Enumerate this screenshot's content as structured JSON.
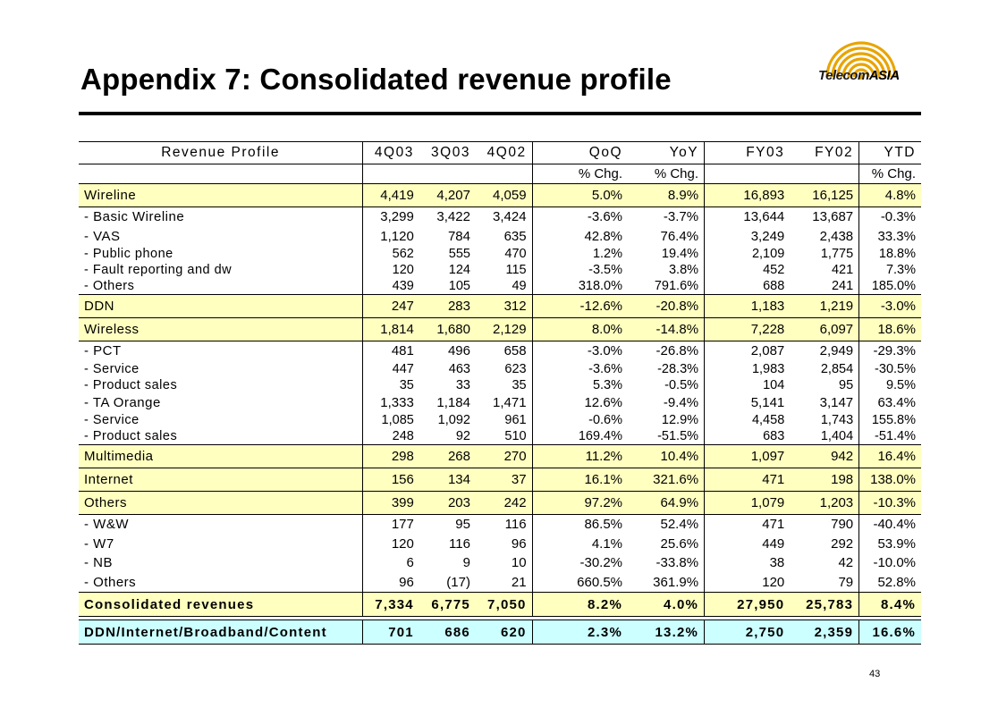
{
  "title": "Appendix 7: Consolidated revenue profile",
  "logo": {
    "text_main": "Telecom",
    "text_accent": "ASIA",
    "color": "#e8a400"
  },
  "page_number": "43",
  "table": {
    "headers": [
      "Revenue Profile",
      "4Q03",
      "3Q03",
      "4Q02",
      "QoQ",
      "YoY",
      "FY03",
      "FY02",
      "YTD"
    ],
    "subheaders": {
      "qoq": "% Chg.",
      "yoy": "% Chg.",
      "ytd": "% Chg."
    },
    "rows": [
      {
        "label": "Wireline",
        "v": [
          "4,419",
          "4,207",
          "4,059",
          "5.0%",
          "8.9%",
          "16,893",
          "16,125",
          "4.8%"
        ]
      },
      {
        "label": "- Basic Wireline",
        "v": [
          "3,299",
          "3,422",
          "3,424",
          "-3.6%",
          "-3.7%",
          "13,644",
          "13,687",
          "-0.3%"
        ]
      },
      {
        "label": "- VAS",
        "v": [
          "1,120",
          "784",
          "635",
          "42.8%",
          "76.4%",
          "3,249",
          "2,438",
          "33.3%"
        ]
      },
      {
        "label": "- Public phone",
        "v": [
          "562",
          "555",
          "470",
          "1.2%",
          "19.4%",
          "2,109",
          "1,775",
          "18.8%"
        ]
      },
      {
        "label": "- Fault reporting and dw",
        "v": [
          "120",
          "124",
          "115",
          "-3.5%",
          "3.8%",
          "452",
          "421",
          "7.3%"
        ]
      },
      {
        "label": "- Others",
        "v": [
          "439",
          "105",
          "49",
          "318.0%",
          "791.6%",
          "688",
          "241",
          "185.0%"
        ]
      },
      {
        "label": "DDN",
        "v": [
          "247",
          "283",
          "312",
          "-12.6%",
          "-20.8%",
          "1,183",
          "1,219",
          "-3.0%"
        ]
      },
      {
        "label": "Wireless",
        "v": [
          "1,814",
          "1,680",
          "2,129",
          "8.0%",
          "-14.8%",
          "7,228",
          "6,097",
          "18.6%"
        ]
      },
      {
        "label": "- PCT",
        "v": [
          "481",
          "496",
          "658",
          "-3.0%",
          "-26.8%",
          "2,087",
          "2,949",
          "-29.3%"
        ]
      },
      {
        "label": "- Service",
        "v": [
          "447",
          "463",
          "623",
          "-3.6%",
          "-28.3%",
          "1,983",
          "2,854",
          "-30.5%"
        ]
      },
      {
        "label": "- Product sales",
        "v": [
          "35",
          "33",
          "35",
          "5.3%",
          "-0.5%",
          "104",
          "95",
          "9.5%"
        ]
      },
      {
        "label": "- TA Orange",
        "v": [
          "1,333",
          "1,184",
          "1,471",
          "12.6%",
          "-9.4%",
          "5,141",
          "3,147",
          "63.4%"
        ]
      },
      {
        "label": "- Service",
        "v": [
          "1,085",
          "1,092",
          "961",
          "-0.6%",
          "12.9%",
          "4,458",
          "1,743",
          "155.8%"
        ]
      },
      {
        "label": "- Product sales",
        "v": [
          "248",
          "92",
          "510",
          "169.4%",
          "-51.5%",
          "683",
          "1,404",
          "-51.4%"
        ]
      },
      {
        "label": "Multimedia",
        "v": [
          "298",
          "268",
          "270",
          "11.2%",
          "10.4%",
          "1,097",
          "942",
          "16.4%"
        ]
      },
      {
        "label": "Internet",
        "v": [
          "156",
          "134",
          "37",
          "16.1%",
          "321.6%",
          "471",
          "198",
          "138.0%"
        ]
      },
      {
        "label": "Others",
        "v": [
          "399",
          "203",
          "242",
          "97.2%",
          "64.9%",
          "1,079",
          "1,203",
          "-10.3%"
        ]
      },
      {
        "label": "- W&W",
        "v": [
          "177",
          "95",
          "116",
          "86.5%",
          "52.4%",
          "471",
          "790",
          "-40.4%"
        ]
      },
      {
        "label": "- W7",
        "v": [
          "120",
          "116",
          "96",
          "4.1%",
          "25.6%",
          "449",
          "292",
          "53.9%"
        ]
      },
      {
        "label": "- NB",
        "v": [
          "6",
          "9",
          "10",
          "-30.2%",
          "-33.8%",
          "38",
          "42",
          "-10.0%"
        ]
      },
      {
        "label": "- Others",
        "v": [
          "96",
          "(17)",
          "21",
          "660.5%",
          "361.9%",
          "120",
          "79",
          "52.8%"
        ]
      },
      {
        "label": "Consolidated revenues",
        "v": [
          "7,334",
          "6,775",
          "7,050",
          "8.2%",
          "4.0%",
          "27,950",
          "25,783",
          "8.4%"
        ]
      },
      {
        "label": "DDN/Internet/Broadband/Content",
        "v": [
          "701",
          "686",
          "620",
          "2.3%",
          "13.2%",
          "2,750",
          "2,359",
          "16.6%"
        ]
      }
    ]
  }
}
